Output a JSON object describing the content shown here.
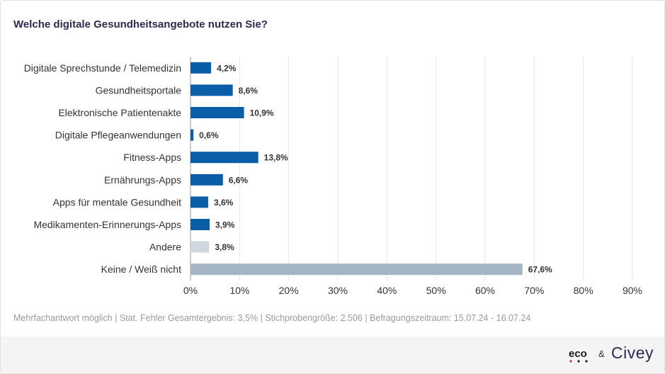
{
  "title": "Welche digitale Gesundheitsangebote nutzen Sie?",
  "footnote": "Mehrfachantwort möglich | Stat. Fehler Gesamtergebnis: 3,5% | Stichprobengröße: 2.506 | Befragungszeitraum: 15.07.24 - 16.07.24",
  "logos": {
    "eco": "eco",
    "ampersand": "&",
    "civey": "Civey"
  },
  "colors": {
    "primary": "#0a5ea8",
    "andere": "#cfd8df",
    "keine": "#a3b4c2",
    "grid": "#e6e6e6",
    "title": "#2c2a52"
  },
  "chart_data": {
    "type": "bar",
    "orientation": "horizontal",
    "title": "Welche digitale Gesundheitsangebote nutzen Sie?",
    "categories": [
      "Digitale Sprechstunde / Telemedizin",
      "Gesundheitsportale",
      "Elektronische Patientenakte",
      "Digitale Pflegeanwendungen",
      "Fitness-Apps",
      "Ernährungs-Apps",
      "Apps für mentale Gesundheit",
      "Medikamenten-Erinnerungs-Apps",
      "Andere",
      "Keine / Weiß nicht"
    ],
    "values": [
      4.2,
      8.6,
      10.9,
      0.6,
      13.8,
      6.6,
      3.6,
      3.9,
      3.8,
      67.6
    ],
    "value_labels": [
      "4,2%",
      "8,6%",
      "10,9%",
      "0,6%",
      "13,8%",
      "6,6%",
      "3,6%",
      "3,9%",
      "3,8%",
      "67,6%"
    ],
    "bar_colors": [
      "#0a5ea8",
      "#0a5ea8",
      "#0a5ea8",
      "#0a5ea8",
      "#0a5ea8",
      "#0a5ea8",
      "#0a5ea8",
      "#0a5ea8",
      "#cfd8df",
      "#a3b4c2"
    ],
    "xlim": [
      0,
      90
    ],
    "xticks": [
      0,
      10,
      20,
      30,
      40,
      50,
      60,
      70,
      80,
      90
    ],
    "xtick_labels": [
      "0%",
      "10%",
      "20%",
      "30%",
      "40%",
      "50%",
      "60%",
      "70%",
      "80%",
      "90%"
    ],
    "grid": true
  }
}
